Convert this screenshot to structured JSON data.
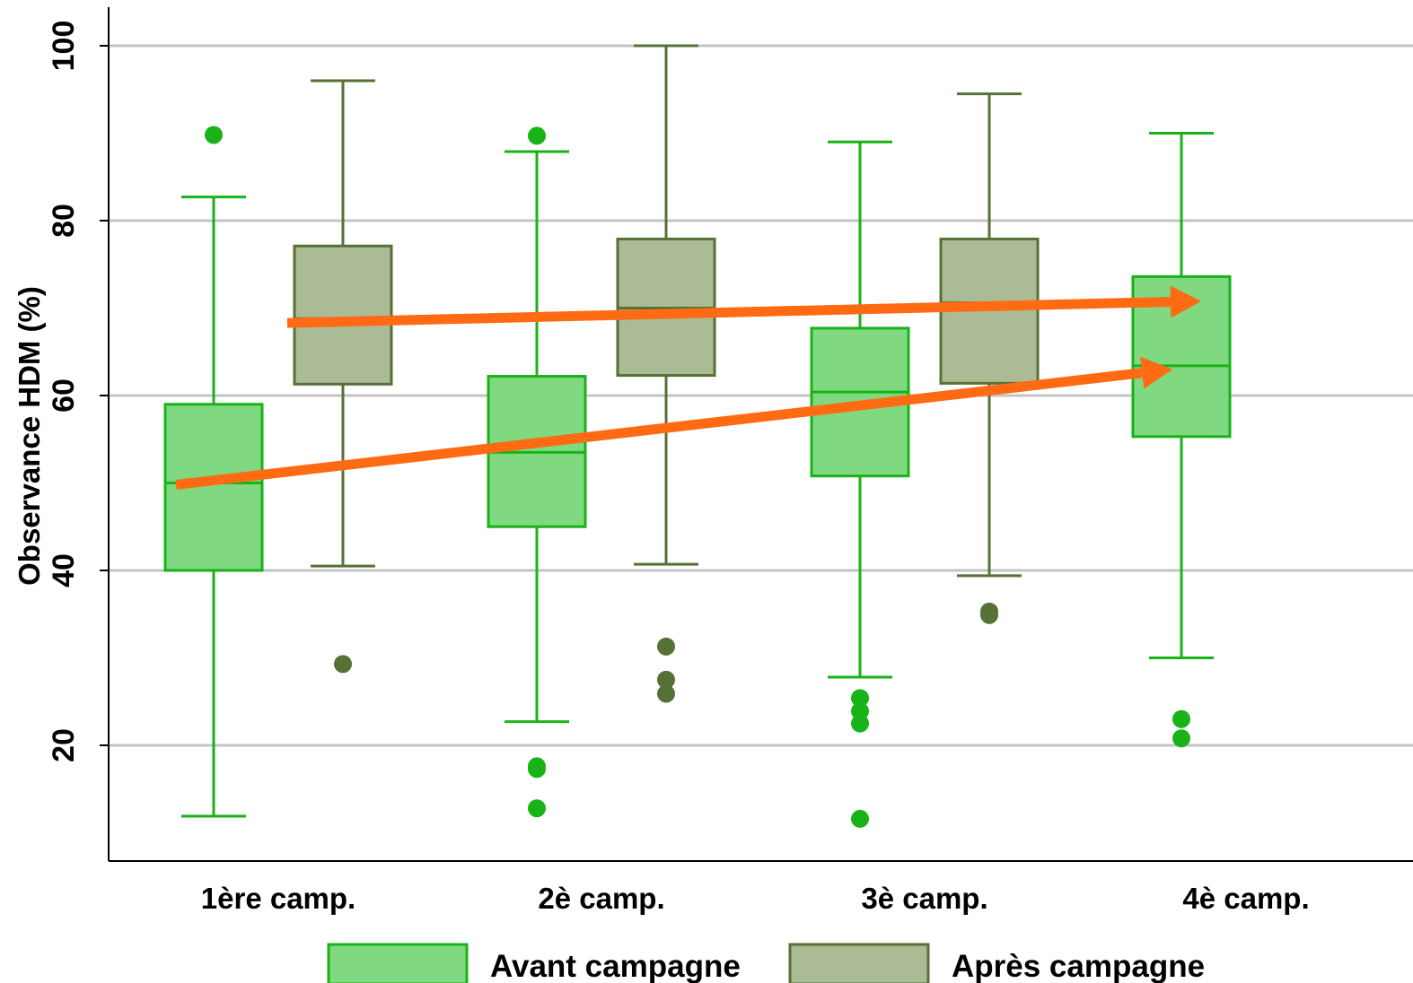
{
  "chart_data": {
    "type": "box",
    "ylabel": "Observance HDM (%)",
    "xlabel": "",
    "ylim": [
      7,
      104
    ],
    "yticks": [
      20,
      40,
      60,
      80,
      100
    ],
    "grid": true,
    "legend_position": "bottom",
    "categories": [
      "1ère camp.",
      "2è camp.",
      "3è camp.",
      "4è camp."
    ],
    "series": [
      {
        "name": "Avant campagne",
        "fill": "#80d880",
        "stroke": "#19b319",
        "boxes": [
          {
            "category": "1ère camp.",
            "whisker_low": 11.9,
            "q1": 40.0,
            "median": 50.0,
            "q3": 59.0,
            "whisker_high": 82.7,
            "outliers": [
              89.8
            ]
          },
          {
            "category": "2è camp.",
            "whisker_low": 22.7,
            "q1": 45.0,
            "median": 53.5,
            "q3": 62.2,
            "whisker_high": 87.9,
            "outliers": [
              89.7,
              17.6,
              17.3,
              12.8
            ]
          },
          {
            "category": "3è camp.",
            "whisker_low": 27.8,
            "q1": 50.8,
            "median": 60.4,
            "q3": 67.7,
            "whisker_high": 89.0,
            "outliers": [
              25.4,
              23.9,
              22.5,
              11.6
            ]
          },
          {
            "category": "4è camp.",
            "whisker_low": 30.0,
            "q1": 55.3,
            "median": 63.4,
            "q3": 73.6,
            "whisker_high": 90.0,
            "outliers": [
              23.0,
              20.8
            ]
          }
        ]
      },
      {
        "name": "Après campagne",
        "fill": "#abbb96",
        "stroke": "#567135",
        "boxes": [
          {
            "category": "1ère camp.",
            "whisker_low": 40.5,
            "q1": 61.3,
            "median": 68.8,
            "q3": 77.1,
            "whisker_high": 96.0,
            "outliers": [
              29.3
            ]
          },
          {
            "category": "2è camp.",
            "whisker_low": 40.7,
            "q1": 62.3,
            "median": 70.0,
            "q3": 77.9,
            "whisker_high": 100.0,
            "outliers": [
              31.3,
              27.5,
              25.9
            ]
          },
          {
            "category": "3è camp.",
            "whisker_low": 39.4,
            "q1": 61.4,
            "median": 70.6,
            "q3": 77.9,
            "whisker_high": 94.5,
            "outliers": [
              35.3,
              34.9
            ]
          }
        ]
      }
    ],
    "annotations": [
      {
        "type": "arrow",
        "color": "#ff6a13",
        "from": {
          "category": "1ère camp.",
          "series": "Après campagne",
          "y": 68.3
        },
        "to": {
          "category": "4è camp.",
          "series": "Avant campagne",
          "y": 70.8
        }
      },
      {
        "type": "arrow",
        "color": "#ff6a13",
        "from": {
          "category": "1ère camp.",
          "series": "Avant campagne",
          "y": 49.8
        },
        "to": {
          "category": "4è camp.",
          "series": "Avant campagne",
          "y": 63.0
        }
      }
    ]
  }
}
